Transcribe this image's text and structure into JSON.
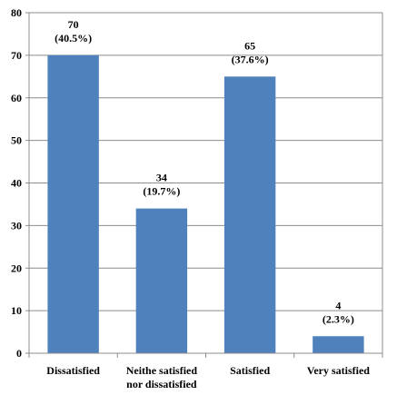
{
  "chart_data": {
    "type": "bar",
    "title": "",
    "xlabel": "",
    "ylabel": "",
    "ylim": [
      0,
      80
    ],
    "yticks": [
      0,
      10,
      20,
      30,
      40,
      50,
      60,
      70,
      80
    ],
    "grid": true,
    "legend": "none",
    "bar_color": "#4f81bd",
    "categories": [
      [
        "Dissatisfied"
      ],
      [
        "Neithe satisfied",
        "nor dissatisfied"
      ],
      [
        "Satisfied"
      ],
      [
        "Very satisfied"
      ]
    ],
    "values": [
      70,
      34,
      65,
      4
    ],
    "data_labels": [
      [
        "70",
        "(40.5%)"
      ],
      [
        "34",
        "(19.7%)"
      ],
      [
        "65",
        "(37.6%)"
      ],
      [
        "4",
        "(2.3%)"
      ]
    ]
  }
}
